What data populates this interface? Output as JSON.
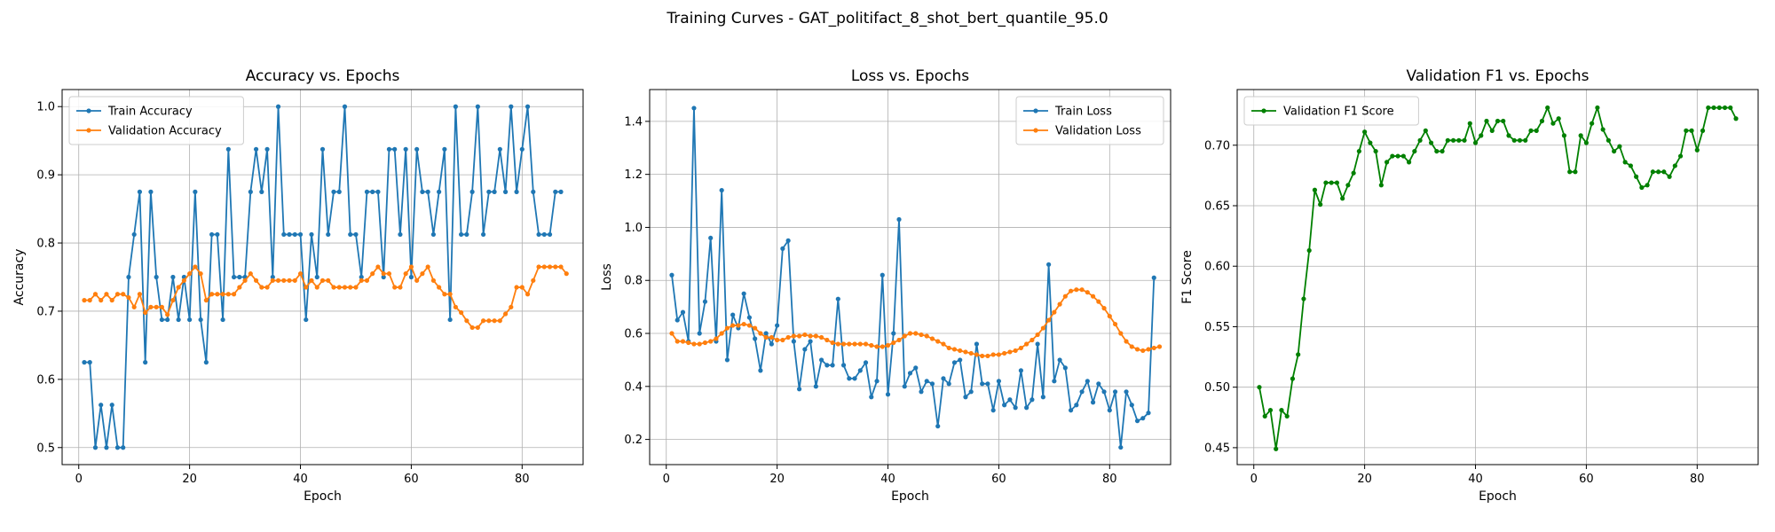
{
  "figure": {
    "suptitle": "Training Curves - GAT_politifact_8_shot_bert_quantile_95.0"
  },
  "colors": {
    "train": "#1f77b4",
    "validation": "#ff7f0e",
    "f1": "#008000",
    "grid": "#b0b0b0"
  },
  "chart_data": [
    {
      "type": "line",
      "title": "Accuracy vs. Epochs",
      "xlabel": "Epoch",
      "ylabel": "Accuracy",
      "xlim": [
        -3,
        91
      ],
      "ylim": [
        0.475,
        1.025
      ],
      "xticks": [
        0,
        20,
        40,
        60,
        80
      ],
      "yticks": [
        0.5,
        0.6,
        0.7,
        0.8,
        0.9,
        1.0
      ],
      "yticklabels": [
        "0.5",
        "0.6",
        "0.7",
        "0.8",
        "0.9",
        "1.0"
      ],
      "grid": true,
      "legend": "upper-left",
      "series": [
        {
          "name": "Train Accuracy",
          "color": "#1f77b4",
          "values": [
            0.625,
            0.625,
            0.5,
            0.5625,
            0.5,
            0.5625,
            0.5,
            0.5,
            0.75,
            0.8125,
            0.875,
            0.625,
            0.875,
            0.75,
            0.6875,
            0.6875,
            0.75,
            0.6875,
            0.75,
            0.6875,
            0.875,
            0.6875,
            0.625,
            0.8125,
            0.8125,
            0.6875,
            0.9375,
            0.75,
            0.75,
            0.75,
            0.875,
            0.9375,
            0.875,
            0.9375,
            0.75,
            1.0,
            0.8125,
            0.8125,
            0.8125,
            0.8125,
            0.6875,
            0.8125,
            0.75,
            0.9375,
            0.8125,
            0.875,
            0.875,
            1.0,
            0.8125,
            0.8125,
            0.75,
            0.875,
            0.875,
            0.875,
            0.75,
            0.9375,
            0.9375,
            0.8125,
            0.9375,
            0.75,
            0.9375,
            0.875,
            0.875,
            0.8125,
            0.875,
            0.9375,
            0.6875,
            1.0,
            0.8125,
            0.8125,
            0.875,
            1.0,
            0.8125,
            0.875,
            0.875,
            0.9375,
            0.875,
            1.0,
            0.875,
            0.9375,
            1.0,
            0.875,
            0.8125,
            0.8125,
            0.8125,
            0.875,
            0.875
          ]
        },
        {
          "name": "Validation Accuracy",
          "color": "#ff7f0e",
          "values": [
            0.716,
            0.716,
            0.725,
            0.716,
            0.725,
            0.716,
            0.725,
            0.725,
            0.72,
            0.706,
            0.725,
            0.698,
            0.706,
            0.706,
            0.706,
            0.695,
            0.716,
            0.735,
            0.745,
            0.755,
            0.765,
            0.755,
            0.716,
            0.725,
            0.725,
            0.725,
            0.725,
            0.725,
            0.735,
            0.745,
            0.755,
            0.745,
            0.735,
            0.735,
            0.745,
            0.745,
            0.745,
            0.745,
            0.745,
            0.755,
            0.735,
            0.745,
            0.735,
            0.745,
            0.745,
            0.735,
            0.735,
            0.735,
            0.735,
            0.735,
            0.745,
            0.745,
            0.755,
            0.765,
            0.755,
            0.755,
            0.735,
            0.735,
            0.755,
            0.765,
            0.745,
            0.755,
            0.765,
            0.745,
            0.735,
            0.725,
            0.725,
            0.706,
            0.698,
            0.686,
            0.676,
            0.676,
            0.686,
            0.686,
            0.686,
            0.686,
            0.696,
            0.706,
            0.735,
            0.735,
            0.725,
            0.745,
            0.765,
            0.765,
            0.765,
            0.765,
            0.765,
            0.755
          ]
        }
      ]
    },
    {
      "type": "line",
      "title": "Loss vs. Epochs",
      "xlabel": "Epoch",
      "ylabel": "Loss",
      "xlim": [
        -3,
        91
      ],
      "ylim": [
        0.105,
        1.52
      ],
      "xticks": [
        0,
        20,
        40,
        60,
        80
      ],
      "yticks": [
        0.2,
        0.4,
        0.6,
        0.8,
        1.0,
        1.2,
        1.4
      ],
      "yticklabels": [
        "0.2",
        "0.4",
        "0.6",
        "0.8",
        "1.0",
        "1.2",
        "1.4"
      ],
      "grid": true,
      "legend": "upper-right",
      "series": [
        {
          "name": "Train Loss",
          "color": "#1f77b4",
          "values": [
            0.82,
            0.65,
            0.68,
            0.57,
            1.45,
            0.6,
            0.72,
            0.96,
            0.57,
            1.14,
            0.5,
            0.67,
            0.62,
            0.75,
            0.66,
            0.58,
            0.46,
            0.6,
            0.56,
            0.63,
            0.92,
            0.95,
            0.57,
            0.39,
            0.54,
            0.57,
            0.4,
            0.5,
            0.48,
            0.48,
            0.73,
            0.48,
            0.43,
            0.43,
            0.46,
            0.49,
            0.36,
            0.42,
            0.82,
            0.37,
            0.6,
            1.03,
            0.4,
            0.45,
            0.47,
            0.38,
            0.42,
            0.41,
            0.25,
            0.43,
            0.41,
            0.49,
            0.5,
            0.36,
            0.38,
            0.56,
            0.41,
            0.41,
            0.31,
            0.42,
            0.33,
            0.35,
            0.32,
            0.46,
            0.32,
            0.35,
            0.56,
            0.36,
            0.86,
            0.42,
            0.5,
            0.47,
            0.31,
            0.33,
            0.38,
            0.42,
            0.34,
            0.41,
            0.38,
            0.31,
            0.38,
            0.17,
            0.38,
            0.33,
            0.27,
            0.28,
            0.3,
            0.81
          ]
        },
        {
          "name": "Validation Loss",
          "color": "#ff7f0e",
          "values": [
            0.6,
            0.57,
            0.57,
            0.565,
            0.56,
            0.56,
            0.565,
            0.57,
            0.58,
            0.6,
            0.62,
            0.63,
            0.63,
            0.635,
            0.63,
            0.62,
            0.6,
            0.585,
            0.585,
            0.575,
            0.575,
            0.585,
            0.59,
            0.59,
            0.595,
            0.59,
            0.59,
            0.585,
            0.575,
            0.565,
            0.56,
            0.56,
            0.56,
            0.56,
            0.56,
            0.56,
            0.555,
            0.55,
            0.55,
            0.555,
            0.565,
            0.575,
            0.59,
            0.6,
            0.6,
            0.595,
            0.59,
            0.58,
            0.57,
            0.56,
            0.545,
            0.54,
            0.535,
            0.53,
            0.525,
            0.52,
            0.515,
            0.515,
            0.52,
            0.52,
            0.525,
            0.53,
            0.535,
            0.545,
            0.56,
            0.575,
            0.595,
            0.62,
            0.65,
            0.68,
            0.71,
            0.74,
            0.76,
            0.765,
            0.765,
            0.755,
            0.74,
            0.72,
            0.695,
            0.665,
            0.635,
            0.6,
            0.57,
            0.55,
            0.54,
            0.535,
            0.54,
            0.545,
            0.55
          ]
        }
      ]
    },
    {
      "type": "line",
      "title": "Validation F1 vs. Epochs",
      "xlabel": "Epoch",
      "ylabel": "F1 Score",
      "xlim": [
        -3,
        91
      ],
      "ylim": [
        0.436,
        0.746
      ],
      "xticks": [
        0,
        20,
        40,
        60,
        80
      ],
      "yticks": [
        0.45,
        0.5,
        0.55,
        0.6,
        0.65,
        0.7
      ],
      "yticklabels": [
        "0.45",
        "0.50",
        "0.55",
        "0.60",
        "0.65",
        "0.70"
      ],
      "grid": true,
      "legend": "upper-left",
      "series": [
        {
          "name": "Validation F1 Score",
          "color": "#008000",
          "values": [
            0.5,
            0.476,
            0.481,
            0.449,
            0.481,
            0.476,
            0.507,
            0.527,
            0.573,
            0.613,
            0.663,
            0.651,
            0.669,
            0.669,
            0.669,
            0.656,
            0.667,
            0.677,
            0.695,
            0.711,
            0.702,
            0.695,
            0.667,
            0.686,
            0.691,
            0.691,
            0.691,
            0.686,
            0.695,
            0.704,
            0.712,
            0.702,
            0.695,
            0.695,
            0.704,
            0.704,
            0.704,
            0.704,
            0.718,
            0.702,
            0.708,
            0.72,
            0.712,
            0.72,
            0.72,
            0.708,
            0.704,
            0.704,
            0.704,
            0.712,
            0.712,
            0.72,
            0.731,
            0.718,
            0.722,
            0.708,
            0.678,
            0.678,
            0.708,
            0.702,
            0.718,
            0.731,
            0.713,
            0.704,
            0.695,
            0.699,
            0.686,
            0.683,
            0.674,
            0.665,
            0.667,
            0.678,
            0.678,
            0.678,
            0.674,
            0.683,
            0.691,
            0.712,
            0.712,
            0.696,
            0.712,
            0.731,
            0.731,
            0.731,
            0.731,
            0.731,
            0.722
          ]
        }
      ]
    }
  ]
}
